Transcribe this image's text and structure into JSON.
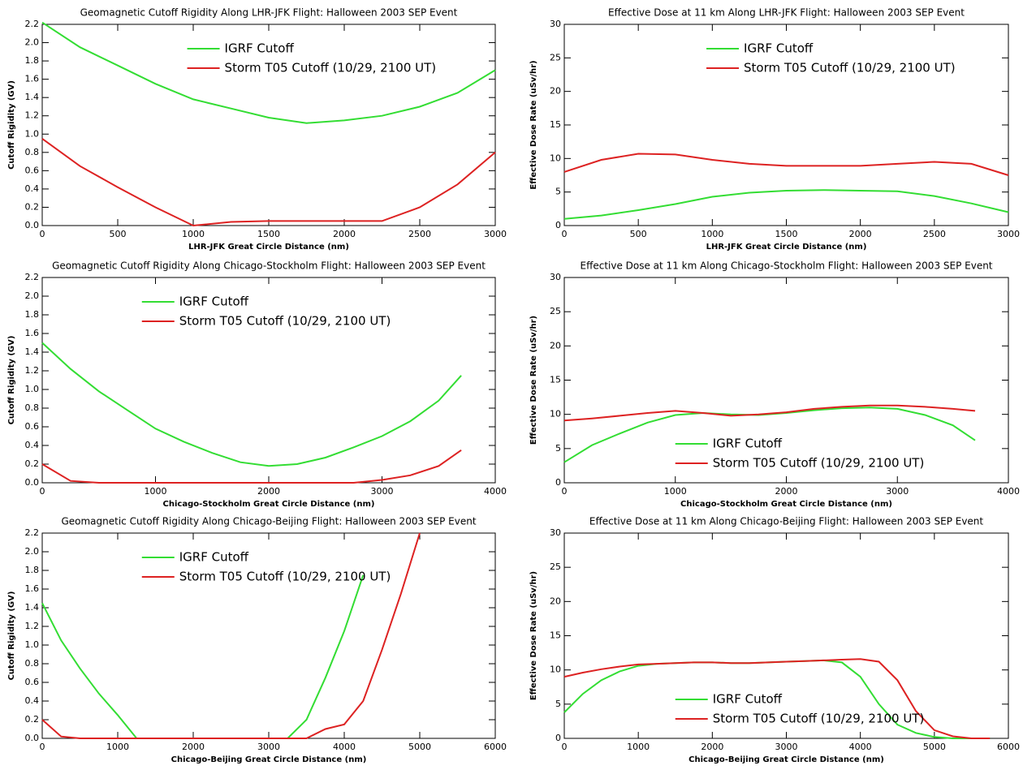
{
  "chart_data": [
    {
      "type": "line",
      "title": "Geomagnetic Cutoff Rigidity Along LHR-JFK Flight: Halloween 2003 SEP Event",
      "xlabel": "LHR-JFK Great Circle Distance (nm)",
      "ylabel": "Cutoff Rigidity (GV)",
      "x": [
        0,
        250,
        500,
        750,
        1000,
        1250,
        1500,
        1750,
        2000,
        2250,
        2500,
        2750,
        3000
      ],
      "series": [
        {
          "name": "IGRF Cutoff",
          "color": "#33dd33",
          "values": [
            2.22,
            1.95,
            1.75,
            1.55,
            1.38,
            1.28,
            1.18,
            1.12,
            1.15,
            1.2,
            1.3,
            1.45,
            1.7
          ]
        },
        {
          "name": "Storm T05 Cutoff (10/29, 2100 UT)",
          "color": "#dd2222",
          "values": [
            0.95,
            0.65,
            0.42,
            0.2,
            0.0,
            0.04,
            0.05,
            0.05,
            0.05,
            0.05,
            0.2,
            0.45,
            0.8
          ]
        }
      ],
      "xlim": [
        0,
        3000
      ],
      "xticks": [
        0,
        500,
        1000,
        1500,
        2000,
        2500,
        3000
      ],
      "ylim": [
        0,
        2.2
      ],
      "yticks": [
        {
          "value": 0,
          "label": "0.0"
        },
        0.2,
        0.4,
        0.6,
        0.8,
        {
          "value": 1,
          "label": "1.0"
        },
        1.2,
        1.4,
        1.6,
        1.8,
        {
          "value": 2,
          "label": "2.0"
        },
        2.2
      ],
      "legend": "upper center"
    },
    {
      "type": "line",
      "title": "Effective Dose at 11 km Along LHR-JFK Flight: Halloween 2003 SEP Event",
      "xlabel": "LHR-JFK Great Circle Distance (nm)",
      "ylabel": "Effective Dose Rate (uSv/hr)",
      "x": [
        0,
        250,
        500,
        750,
        1000,
        1250,
        1500,
        1750,
        2000,
        2250,
        2500,
        2750,
        3000
      ],
      "series": [
        {
          "name": "IGRF Cutoff",
          "color": "#33dd33",
          "values": [
            1,
            1.5,
            2.3,
            3.2,
            4.3,
            4.9,
            5.2,
            5.3,
            5.2,
            5.1,
            4.4,
            3.3,
            2
          ]
        },
        {
          "name": "Storm T05 Cutoff (10/29, 2100 UT)",
          "color": "#dd2222",
          "values": [
            8,
            9.8,
            10.7,
            10.6,
            9.8,
            9.2,
            8.9,
            8.9,
            8.9,
            9.2,
            9.5,
            9.2,
            7.5
          ]
        }
      ],
      "xlim": [
        0,
        3000
      ],
      "xticks": [
        0,
        500,
        1000,
        1500,
        2000,
        2500,
        3000
      ],
      "ylim": [
        0,
        30
      ],
      "yticks": [
        0,
        5,
        10,
        15,
        20,
        25,
        30
      ],
      "legend": "upper center"
    },
    {
      "type": "line",
      "title": "Geomagnetic Cutoff Rigidity Along Chicago-Stockholm Flight: Halloween 2003 SEP Event",
      "xlabel": "Chicago-Stockholm Great Circle Distance (nm)",
      "ylabel": "Cutoff Rigidity (GV)",
      "x": [
        0,
        250,
        500,
        750,
        1000,
        1250,
        1500,
        1750,
        2000,
        2250,
        2500,
        2750,
        3000,
        3250,
        3500,
        3700
      ],
      "series": [
        {
          "name": "IGRF Cutoff",
          "color": "#33dd33",
          "values": [
            1.5,
            1.22,
            0.98,
            0.78,
            0.58,
            0.44,
            0.32,
            0.22,
            0.18,
            0.2,
            0.27,
            0.38,
            0.5,
            0.66,
            0.88,
            1.15
          ]
        },
        {
          "name": "Storm T05 Cutoff (10/29, 2100 UT)",
          "color": "#dd2222",
          "values": [
            0.2,
            0.02,
            0,
            0,
            0,
            0,
            0,
            0,
            0,
            0,
            0,
            0,
            0.03,
            0.08,
            0.18,
            0.35
          ]
        }
      ],
      "xlim": [
        0,
        4000
      ],
      "xticks": [
        0,
        1000,
        2000,
        3000,
        4000
      ],
      "ylim": [
        0,
        2.2
      ],
      "yticks": [
        {
          "value": 0,
          "label": "0.0"
        },
        0.2,
        0.4,
        0.6,
        0.8,
        {
          "value": 1,
          "label": "1.0"
        },
        1.2,
        1.4,
        1.6,
        1.8,
        {
          "value": 2,
          "label": "2.0"
        },
        2.2
      ],
      "legend": "upper left"
    },
    {
      "type": "line",
      "title": "Effective Dose at 11 km Along Chicago-Stockholm Flight: Halloween 2003 SEP Event",
      "xlabel": "Chicago-Stockholm Great Circle Distance (nm)",
      "ylabel": "Effective Dose Rate (uSv/hr)",
      "x": [
        0,
        250,
        500,
        750,
        1000,
        1250,
        1500,
        1750,
        2000,
        2250,
        2500,
        2750,
        3000,
        3250,
        3500,
        3700
      ],
      "series": [
        {
          "name": "IGRF Cutoff",
          "color": "#33dd33",
          "values": [
            3,
            5.5,
            7.2,
            8.8,
            9.9,
            10.2,
            10,
            9.9,
            10.2,
            10.6,
            10.9,
            11,
            10.8,
            9.9,
            8.4,
            6.2
          ]
        },
        {
          "name": "Storm T05 Cutoff (10/29, 2100 UT)",
          "color": "#dd2222",
          "values": [
            9.1,
            9.4,
            9.8,
            10.2,
            10.5,
            10.2,
            9.8,
            10,
            10.3,
            10.8,
            11.1,
            11.3,
            11.3,
            11.1,
            10.8,
            10.5
          ]
        }
      ],
      "xlim": [
        0,
        4000
      ],
      "xticks": [
        0,
        1000,
        2000,
        3000,
        4000
      ],
      "ylim": [
        0,
        30
      ],
      "yticks": [
        0,
        5,
        10,
        15,
        20,
        25,
        30
      ],
      "legend": "lower center"
    },
    {
      "type": "line",
      "title": "Geomagnetic Cutoff Rigidity Along Chicago-Beijing Flight: Halloween 2003 SEP Event",
      "xlabel": "Chicago-Beijing Great Circle Distance (nm)",
      "ylabel": "Cutoff Rigidity (GV)",
      "x": [
        0,
        250,
        500,
        750,
        1000,
        1250,
        1500,
        1750,
        2000,
        2250,
        2500,
        2750,
        3000,
        3250,
        3500,
        3750,
        4000,
        4250,
        4500,
        4750,
        5000
      ],
      "series": [
        {
          "name": "IGRF Cutoff",
          "color": "#33dd33",
          "values": [
            1.45,
            1.05,
            0.75,
            0.48,
            0.25,
            0,
            0,
            0,
            0,
            0,
            0,
            0,
            0,
            0,
            0.2,
            0.65,
            1.15,
            1.75,
            null,
            null,
            null
          ]
        },
        {
          "name": "Storm T05 Cutoff (10/29, 2100 UT)",
          "color": "#dd2222",
          "values": [
            0.2,
            0.02,
            0,
            0,
            0,
            0,
            0,
            0,
            0,
            0,
            0,
            0,
            0,
            0,
            0,
            0.1,
            0.15,
            0.4,
            0.95,
            1.55,
            2.2
          ]
        }
      ],
      "xlim": [
        0,
        6000
      ],
      "xticks": [
        0,
        1000,
        2000,
        3000,
        4000,
        5000,
        6000
      ],
      "ylim": [
        0,
        2.2
      ],
      "yticks": [
        {
          "value": 0,
          "label": "0.0"
        },
        0.2,
        0.4,
        0.6,
        0.8,
        {
          "value": 1,
          "label": "1.0"
        },
        1.2,
        1.4,
        1.6,
        1.8,
        {
          "value": 2,
          "label": "2.0"
        },
        2.2
      ],
      "legend": "upper left"
    },
    {
      "type": "line",
      "title": "Effective Dose at 11 km Along Chicago-Beijing Flight: Halloween 2003 SEP Event",
      "xlabel": "Chicago-Beijing Great Circle Distance (nm)",
      "ylabel": "Effective Dose Rate (uSv/hr)",
      "x": [
        0,
        250,
        500,
        750,
        1000,
        1250,
        1500,
        1750,
        2000,
        2250,
        2500,
        2750,
        3000,
        3250,
        3500,
        3750,
        4000,
        4250,
        4500,
        4750,
        5000,
        5250,
        5500,
        5750
      ],
      "series": [
        {
          "name": "IGRF Cutoff",
          "color": "#33dd33",
          "values": [
            3.8,
            6.5,
            8.5,
            9.8,
            10.6,
            10.9,
            11,
            11.1,
            11.1,
            11,
            11,
            11.1,
            11.2,
            11.3,
            11.4,
            11.1,
            9,
            5,
            2,
            0.8,
            0.2,
            0,
            0,
            0
          ]
        },
        {
          "name": "Storm T05 Cutoff (10/29, 2100 UT)",
          "color": "#dd2222",
          "values": [
            9,
            9.6,
            10.1,
            10.5,
            10.8,
            10.9,
            11,
            11.1,
            11.1,
            11,
            11,
            11.1,
            11.2,
            11.3,
            11.4,
            11.5,
            11.6,
            11.2,
            8.5,
            4,
            1.2,
            0.3,
            0,
            0
          ]
        }
      ],
      "xlim": [
        0,
        6000
      ],
      "xticks": [
        0,
        1000,
        2000,
        3000,
        4000,
        5000,
        6000
      ],
      "ylim": [
        0,
        30
      ],
      "yticks": [
        0,
        5,
        10,
        15,
        20,
        25,
        30
      ],
      "legend": "lower center"
    }
  ]
}
